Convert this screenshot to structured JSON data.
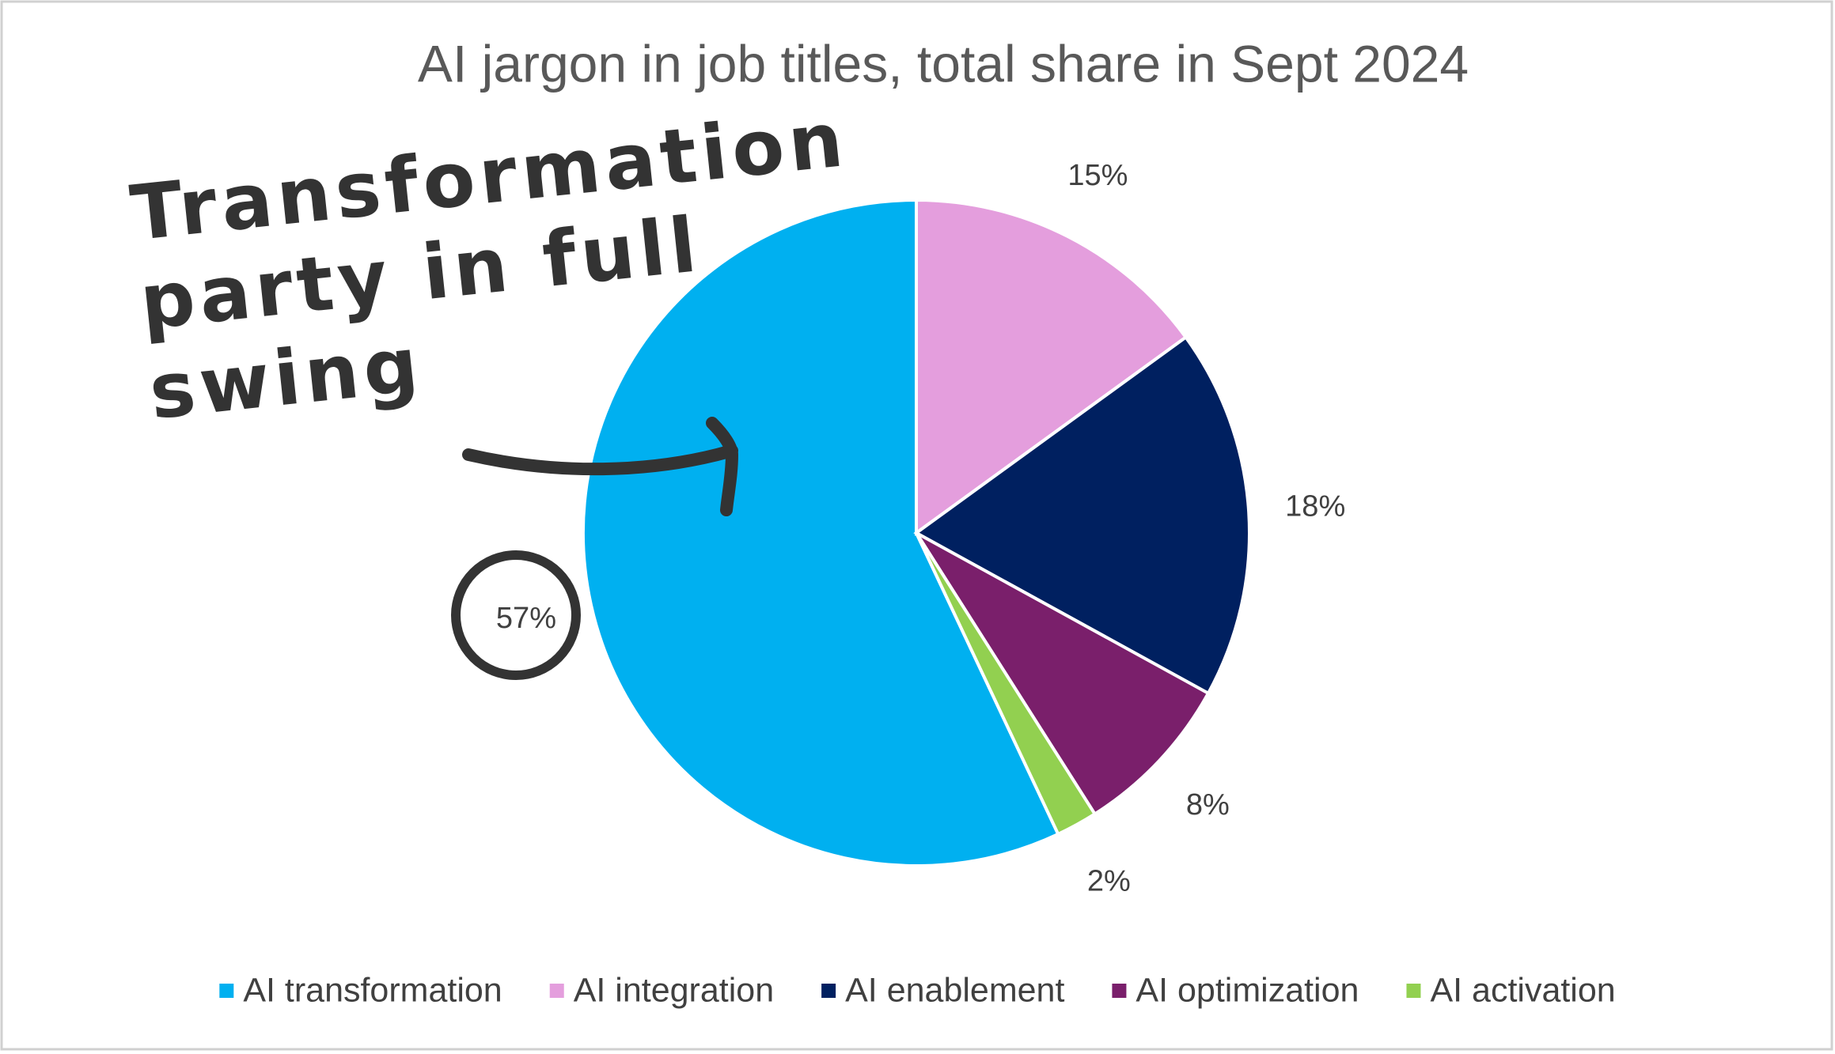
{
  "chart_data": {
    "type": "pie",
    "title": "AI jargon in job titles, total share in Sept 2024",
    "categories": [
      "AI transformation",
      "AI integration",
      "AI enablement",
      "AI optimization",
      "AI activation"
    ],
    "values": [
      57,
      15,
      18,
      8,
      2
    ],
    "value_labels": [
      "57%",
      "15%",
      "18%",
      "8%",
      "2%"
    ],
    "colors": [
      "#00b0f0",
      "#e49edd",
      "#002060",
      "#7a1f6b",
      "#92d050"
    ],
    "legend": "bottom",
    "annotation": "Transformation party in full swing"
  }
}
